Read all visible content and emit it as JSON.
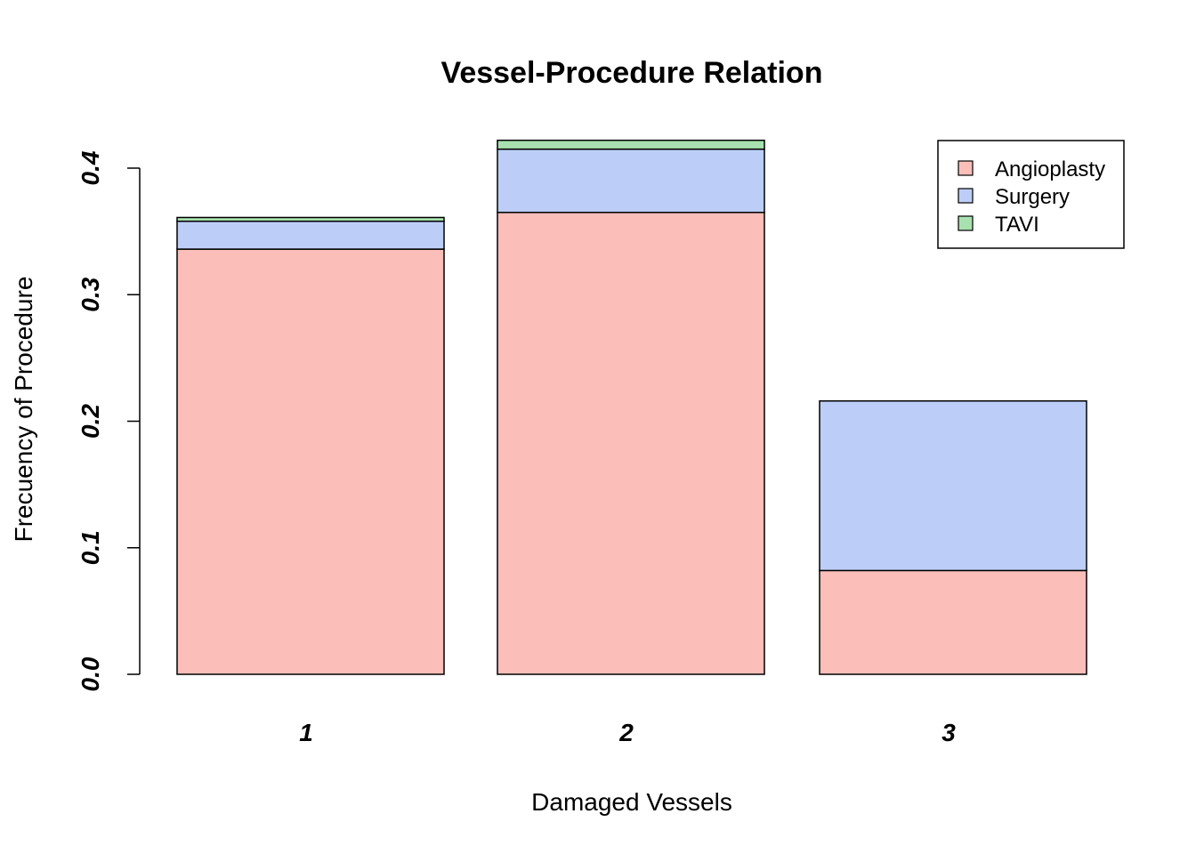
{
  "chart_data": {
    "type": "bar",
    "stacked": true,
    "title": "Vessel-Procedure Relation",
    "xlabel": "Damaged Vessels",
    "ylabel": "Frecuency of Procedure",
    "categories": [
      "1",
      "2",
      "3"
    ],
    "yticks": [
      "0.0",
      "0.1",
      "0.2",
      "0.3",
      "0.4"
    ],
    "ylim": [
      0,
      0.42
    ],
    "series": [
      {
        "name": "Angioplasty",
        "color": "#FBBEB9",
        "values": [
          0.336,
          0.365,
          0.082
        ]
      },
      {
        "name": "Surgery",
        "color": "#BCCEF8",
        "values": [
          0.022,
          0.05,
          0.134
        ]
      },
      {
        "name": "TAVI",
        "color": "#A8E1AF",
        "values": [
          0.003,
          0.007,
          0.0
        ]
      }
    ],
    "legend": {
      "position": "top-right",
      "entries": [
        "Angioplasty",
        "Surgery",
        "TAVI"
      ]
    }
  }
}
